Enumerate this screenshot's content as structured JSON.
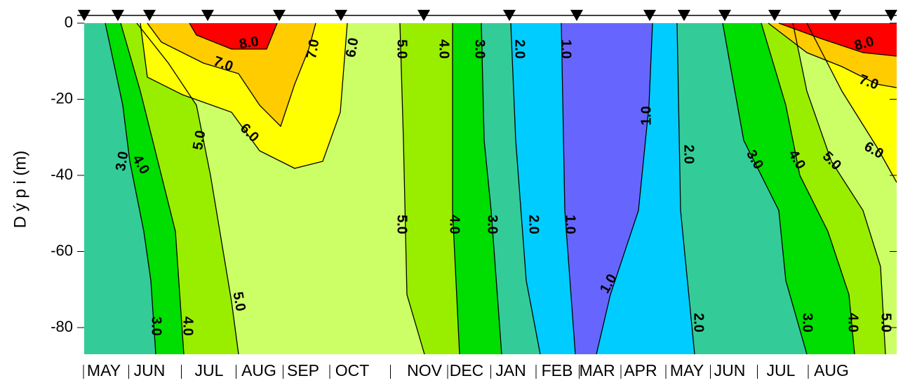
{
  "chart_data": {
    "type": "contour",
    "y_label": "D ý p i (m)",
    "categories": [
      "MAY",
      "JUN",
      "JUL",
      "AUG",
      "SEP",
      "OCT",
      "NOV",
      "DEC",
      "JAN",
      "FEB",
      "MAR",
      "APR",
      "MAY",
      "JUN",
      "JUL",
      "AUG"
    ],
    "ylim": [
      -87,
      0
    ],
    "yticks": [
      0,
      -20,
      -40,
      -60,
      -80
    ],
    "levels": [
      1,
      2,
      3,
      4,
      5,
      6,
      7,
      8
    ],
    "level_labels": [
      "1.0",
      "2.0",
      "3.0",
      "4.0",
      "5.0",
      "6.0",
      "7.0",
      "8.0"
    ],
    "colors": [
      "#6666ff",
      "#00ccff",
      "#33cc99",
      "#00dd00",
      "#99ee00",
      "#ccff66",
      "#ffff00",
      "#ffcc00",
      "#ff0000"
    ]
  }
}
